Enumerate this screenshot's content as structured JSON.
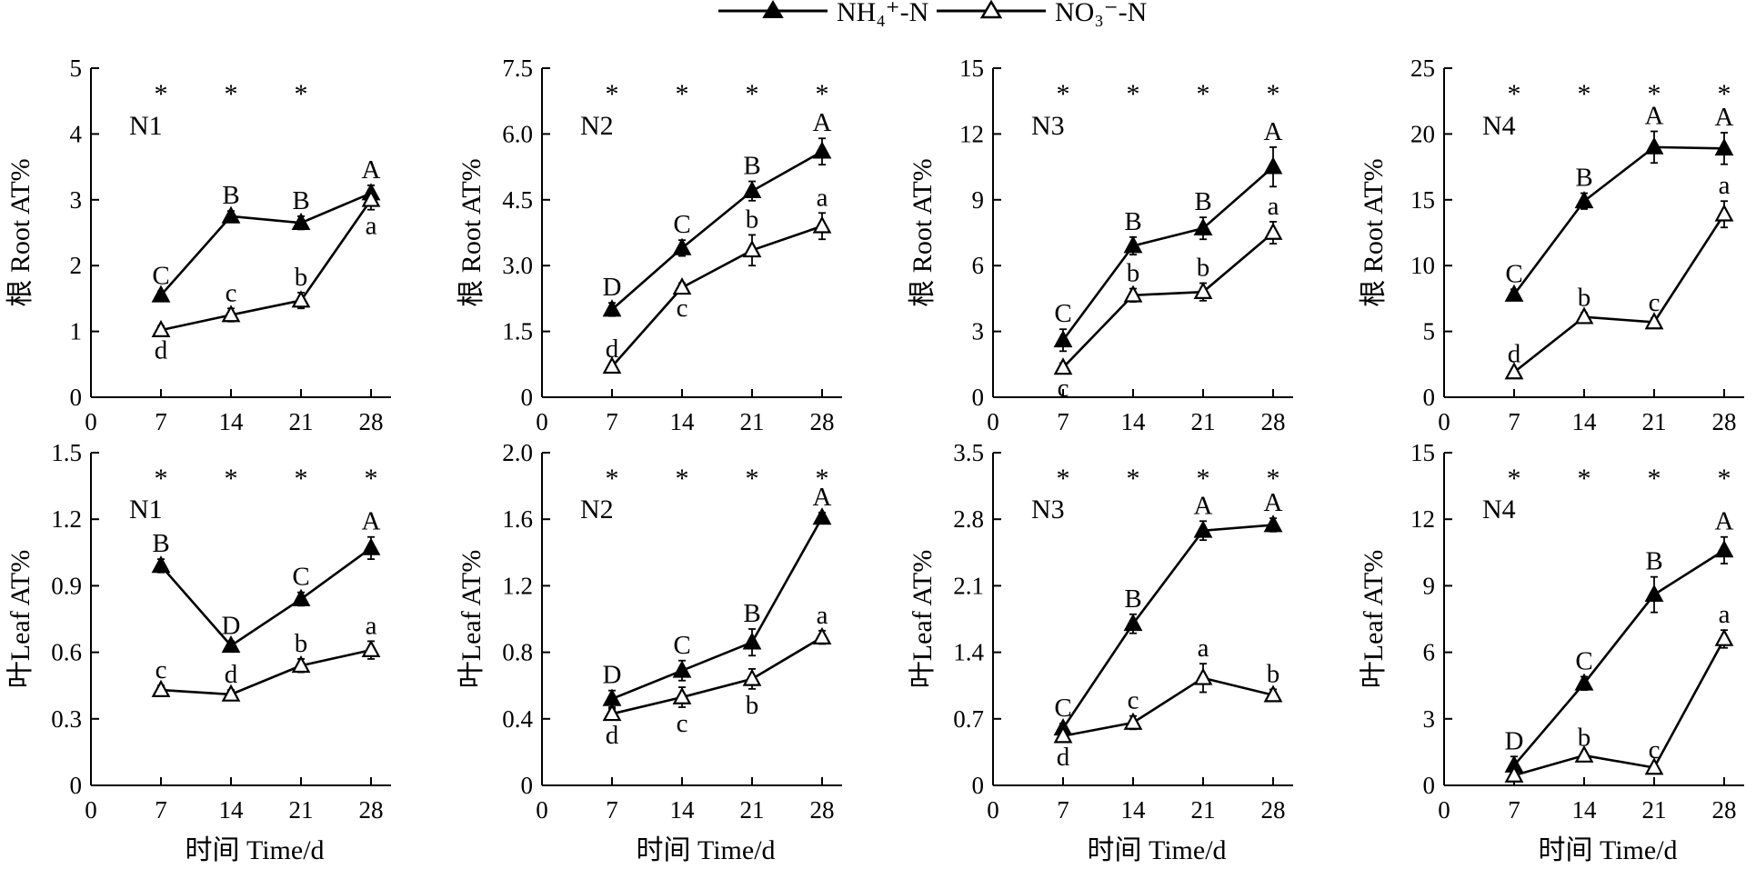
{
  "legend": [
    {
      "label": "NH₄⁺-N",
      "marker": "filled-triangle"
    },
    {
      "label": "NO₃⁻-N",
      "marker": "open-triangle"
    }
  ],
  "xlabel": "时间 Time/d",
  "ylabel_root": "根 Root AT%",
  "ylabel_leaf": "叶Leaf AT%",
  "chart_data": [
    {
      "type": "line",
      "organ": "root",
      "panel": "N1",
      "xticks": [
        "0",
        "7",
        "14",
        "21",
        "28"
      ],
      "xlim": [
        0,
        30
      ],
      "yticks": [
        "0",
        "1",
        "2",
        "3",
        "4",
        "5"
      ],
      "ylim": [
        0,
        5
      ],
      "x": [
        7,
        14,
        21,
        28
      ],
      "series": [
        {
          "name": "NH₄⁺-N",
          "values": [
            1.55,
            2.75,
            2.65,
            3.1
          ],
          "errors": [
            0.06,
            0.08,
            0.1,
            0.12
          ],
          "letters": [
            "C",
            "B",
            "B",
            "A"
          ]
        },
        {
          "name": "NO₃⁻-N",
          "values": [
            1.02,
            1.25,
            1.47,
            3.0
          ],
          "errors": [
            0.06,
            0.1,
            0.12,
            0.15
          ],
          "letters": [
            "d",
            "c",
            "b",
            "a"
          ]
        }
      ],
      "sig": [
        "*",
        "*",
        "*",
        ""
      ]
    },
    {
      "type": "line",
      "organ": "root",
      "panel": "N2",
      "xticks": [
        "0",
        "7",
        "14",
        "21",
        "28"
      ],
      "xlim": [
        0,
        30
      ],
      "yticks": [
        "0",
        "1.5",
        "3.0",
        "4.5",
        "6.0",
        "7.5"
      ],
      "ylim": [
        0,
        7.5
      ],
      "x": [
        7,
        14,
        21,
        28
      ],
      "series": [
        {
          "name": "NH₄⁺-N",
          "values": [
            2.0,
            3.4,
            4.7,
            5.6
          ],
          "errors": [
            0.15,
            0.18,
            0.22,
            0.3
          ],
          "letters": [
            "D",
            "C",
            "B",
            "A"
          ]
        },
        {
          "name": "NO₃⁻-N",
          "values": [
            0.7,
            2.5,
            3.35,
            3.9
          ],
          "errors": [
            0.05,
            0.1,
            0.35,
            0.3
          ],
          "letters": [
            "d",
            "c",
            "b",
            "a"
          ]
        }
      ],
      "sig": [
        "*",
        "*",
        "*",
        "*"
      ]
    },
    {
      "type": "line",
      "organ": "root",
      "panel": "N3",
      "xticks": [
        "0",
        "7",
        "14",
        "21",
        "28"
      ],
      "xlim": [
        0,
        30
      ],
      "yticks": [
        "0",
        "3",
        "6",
        "9",
        "12",
        "15"
      ],
      "ylim": [
        0,
        15
      ],
      "x": [
        7,
        14,
        21,
        28
      ],
      "series": [
        {
          "name": "NH₄⁺-N",
          "values": [
            2.6,
            6.9,
            7.7,
            10.5
          ],
          "errors": [
            0.5,
            0.4,
            0.5,
            0.9
          ],
          "letters": [
            "C",
            "B",
            "B",
            "A"
          ]
        },
        {
          "name": "NO₃⁻-N",
          "values": [
            1.35,
            4.65,
            4.8,
            7.5
          ],
          "errors": [
            0.2,
            0.3,
            0.4,
            0.5
          ],
          "letters": [
            "c",
            "b",
            "b",
            "a"
          ]
        }
      ],
      "sig": [
        "*",
        "*",
        "*",
        "*"
      ]
    },
    {
      "type": "line",
      "organ": "root",
      "panel": "N4",
      "xticks": [
        "0",
        "7",
        "14",
        "21",
        "28"
      ],
      "xlim": [
        0,
        30
      ],
      "yticks": [
        "0",
        "5",
        "10",
        "15",
        "20",
        "25"
      ],
      "ylim": [
        0,
        25
      ],
      "x": [
        7,
        14,
        21,
        28
      ],
      "series": [
        {
          "name": "NH₄⁺-N",
          "values": [
            7.8,
            14.9,
            19.0,
            18.9
          ],
          "errors": [
            0.4,
            0.6,
            1.2,
            1.2
          ],
          "letters": [
            "C",
            "B",
            "A",
            "A"
          ]
        },
        {
          "name": "NO₃⁻-N",
          "values": [
            1.9,
            6.1,
            5.7,
            13.9
          ],
          "errors": [
            0.2,
            0.3,
            0.3,
            1.0
          ],
          "letters": [
            "d",
            "b",
            "c",
            "a"
          ]
        }
      ],
      "sig": [
        "*",
        "*",
        "*",
        "*"
      ]
    },
    {
      "type": "line",
      "organ": "leaf",
      "panel": "N1",
      "xticks": [
        "0",
        "7",
        "14",
        "21",
        "28"
      ],
      "xlim": [
        0,
        30
      ],
      "yticks": [
        "0",
        "0.3",
        "0.6",
        "0.9",
        "1.2",
        "1.5"
      ],
      "ylim": [
        0,
        1.5
      ],
      "x": [
        7,
        14,
        21,
        28
      ],
      "series": [
        {
          "name": "NH₄⁺-N",
          "values": [
            0.99,
            0.63,
            0.84,
            1.07
          ],
          "errors": [
            0.03,
            0.02,
            0.03,
            0.05
          ],
          "letters": [
            "B",
            "D",
            "C",
            "A"
          ]
        },
        {
          "name": "NO₃⁻-N",
          "values": [
            0.43,
            0.41,
            0.54,
            0.61
          ],
          "errors": [
            0.02,
            0.02,
            0.03,
            0.04
          ],
          "letters": [
            "c",
            "d",
            "b",
            "a"
          ]
        }
      ],
      "sig": [
        "*",
        "*",
        "*",
        "*"
      ]
    },
    {
      "type": "line",
      "organ": "leaf",
      "panel": "N2",
      "xticks": [
        "0",
        "7",
        "14",
        "21",
        "28"
      ],
      "xlim": [
        0,
        30
      ],
      "yticks": [
        "0",
        "0.4",
        "0.8",
        "1.2",
        "1.6",
        "2.0"
      ],
      "ylim": [
        0,
        2.0
      ],
      "x": [
        7,
        14,
        21,
        28
      ],
      "series": [
        {
          "name": "NH₄⁺-N",
          "values": [
            0.52,
            0.69,
            0.86,
            1.61
          ],
          "errors": [
            0.05,
            0.06,
            0.08,
            0.03
          ],
          "letters": [
            "D",
            "C",
            "B",
            "A"
          ]
        },
        {
          "name": "NO₃⁻-N",
          "values": [
            0.43,
            0.53,
            0.64,
            0.89
          ],
          "errors": [
            0.03,
            0.06,
            0.06,
            0.04
          ],
          "letters": [
            "d",
            "c",
            "b",
            "a"
          ]
        }
      ],
      "sig": [
        "*",
        "*",
        "*",
        "*"
      ]
    },
    {
      "type": "line",
      "organ": "leaf",
      "panel": "N3",
      "xticks": [
        "0",
        "7",
        "14",
        "21",
        "28"
      ],
      "xlim": [
        0,
        30
      ],
      "yticks": [
        "0",
        "0.7",
        "1.4",
        "2.1",
        "2.8",
        "3.5"
      ],
      "ylim": [
        0,
        3.5
      ],
      "x": [
        7,
        14,
        21,
        28
      ],
      "series": [
        {
          "name": "NH₄⁺-N",
          "values": [
            0.6,
            1.7,
            2.68,
            2.74
          ],
          "errors": [
            0.05,
            0.1,
            0.1,
            0.07
          ],
          "letters": [
            "C",
            "B",
            "A",
            "A"
          ]
        },
        {
          "name": "NO₃⁻-N",
          "values": [
            0.52,
            0.66,
            1.13,
            0.95
          ],
          "errors": [
            0.05,
            0.07,
            0.15,
            0.06
          ],
          "letters": [
            "d",
            "c",
            "a",
            "b"
          ]
        }
      ],
      "sig": [
        "*",
        "*",
        "*",
        "*"
      ]
    },
    {
      "type": "line",
      "organ": "leaf",
      "panel": "N4",
      "xticks": [
        "0",
        "7",
        "14",
        "21",
        "28"
      ],
      "xlim": [
        0,
        30
      ],
      "yticks": [
        "0",
        "3",
        "6",
        "9",
        "12",
        "15"
      ],
      "ylim": [
        0,
        15
      ],
      "x": [
        7,
        14,
        21,
        28
      ],
      "series": [
        {
          "name": "NH₄⁺-N",
          "values": [
            0.9,
            4.6,
            8.6,
            10.6
          ],
          "errors": [
            0.4,
            0.3,
            0.8,
            0.6
          ],
          "letters": [
            "D",
            "C",
            "B",
            "A"
          ]
        },
        {
          "name": "NO₃⁻-N",
          "values": [
            0.45,
            1.35,
            0.8,
            6.6
          ],
          "errors": [
            0.1,
            0.1,
            0.1,
            0.4
          ],
          "letters": [
            "",
            "b",
            "c",
            "a"
          ]
        }
      ],
      "sig": [
        "*",
        "*",
        "*",
        "*"
      ]
    }
  ]
}
